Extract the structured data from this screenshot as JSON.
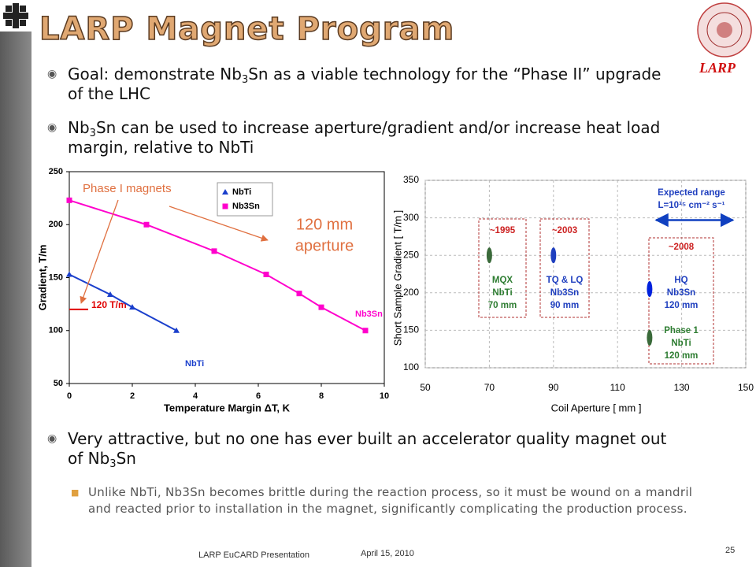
{
  "title": "LARP Magnet Program",
  "logo": "LARP",
  "bullets": [
    {
      "parts": [
        "Goal: demonstrate Nb",
        "3",
        "Sn as a viable technology for the “Phase II” upgrade of the LHC"
      ]
    },
    {
      "parts": [
        "Nb",
        "3",
        "Sn can be used to increase aperture/gradient and/or increase heat load margin, relative to NbTi"
      ]
    },
    {
      "parts": [
        "Very attractive, but no one has ever built an accelerator quality magnet out of Nb",
        "3",
        "Sn"
      ]
    }
  ],
  "sub_bullet": "Unlike NbTi, Nb3Sn becomes brittle during the reaction process, so it must be wound on a mandril and reacted prior to installation in the magnet, significantly complicating the production process.",
  "footer": {
    "left": "LARP EuCARD Presentation",
    "date": "April 15, 2010",
    "page": "25"
  },
  "chart_data": [
    {
      "type": "line",
      "x_label": "Temperature Margin ΔT, K",
      "y_label": "Gradient, T/m",
      "xlim": [
        0,
        10
      ],
      "xticks": [
        0,
        2,
        4,
        6,
        8,
        10
      ],
      "ylim": [
        50,
        250
      ],
      "yticks": [
        50,
        100,
        150,
        200,
        250
      ],
      "series": [
        {
          "name": "NbTi",
          "color": "#1a3fcc",
          "marker": "triangle",
          "x": [
            0,
            1.3,
            2,
            3.4
          ],
          "values": [
            153,
            134,
            122,
            100
          ]
        },
        {
          "name": "Nb3Sn",
          "color": "#ff00cc",
          "marker": "square",
          "x": [
            0,
            2.45,
            4.6,
            6.25,
            7.3,
            8,
            9.4
          ],
          "values": [
            223,
            200,
            175,
            153,
            135,
            122,
            100
          ]
        }
      ],
      "reference_line": {
        "value": 120,
        "label": "120 T/m",
        "color": "#e00000"
      },
      "annotations": [
        "Phase I magnets",
        "120 mm",
        "aperture"
      ],
      "series_labels": [
        "NbTi",
        "Nb3Sn"
      ]
    },
    {
      "type": "scatter",
      "x_label": "Coil Aperture [ mm ]",
      "y_label": "Short Sample Gradient [ T/m ]",
      "xlim": [
        50,
        150
      ],
      "xticks": [
        50,
        70,
        90,
        110,
        130,
        150
      ],
      "ylim": [
        100,
        350
      ],
      "yticks": [
        100,
        150,
        200,
        250,
        300,
        350
      ],
      "grid": true,
      "x": [
        70,
        90,
        120,
        120
      ],
      "values": [
        250,
        250,
        205,
        140
      ],
      "colors": [
        "#3a6a3a",
        "#1f3fbf",
        "#0022dd",
        "#3a6a3a"
      ],
      "annotations": [
        {
          "lines": [
            "~1995"
          ],
          "color": "#cc2020"
        },
        {
          "lines": [
            "MQX",
            "NbTi",
            "70 mm"
          ],
          "color": "#2e7d32"
        },
        {
          "lines": [
            "~2003"
          ],
          "color": "#cc2020"
        },
        {
          "lines": [
            "TQ & LQ",
            "Nb3Sn",
            "90 mm"
          ],
          "color": "#1f3fbf"
        },
        {
          "lines": [
            "~2008"
          ],
          "color": "#cc2020"
        },
        {
          "lines": [
            "HQ",
            "Nb3Sn",
            "120 mm"
          ],
          "color": "#1f3fbf"
        },
        {
          "lines": [
            "Phase 1",
            "NbTi",
            "120 mm"
          ],
          "color": "#2e7d32"
        },
        {
          "lines": [
            "Expected range",
            "L=10³⁵ cm⁻² s⁻¹"
          ],
          "color": "#1f3fbf"
        }
      ],
      "range_arrow": {
        "x": [
          122,
          146
        ],
        "y": 297,
        "color": "#1040c0"
      }
    }
  ]
}
